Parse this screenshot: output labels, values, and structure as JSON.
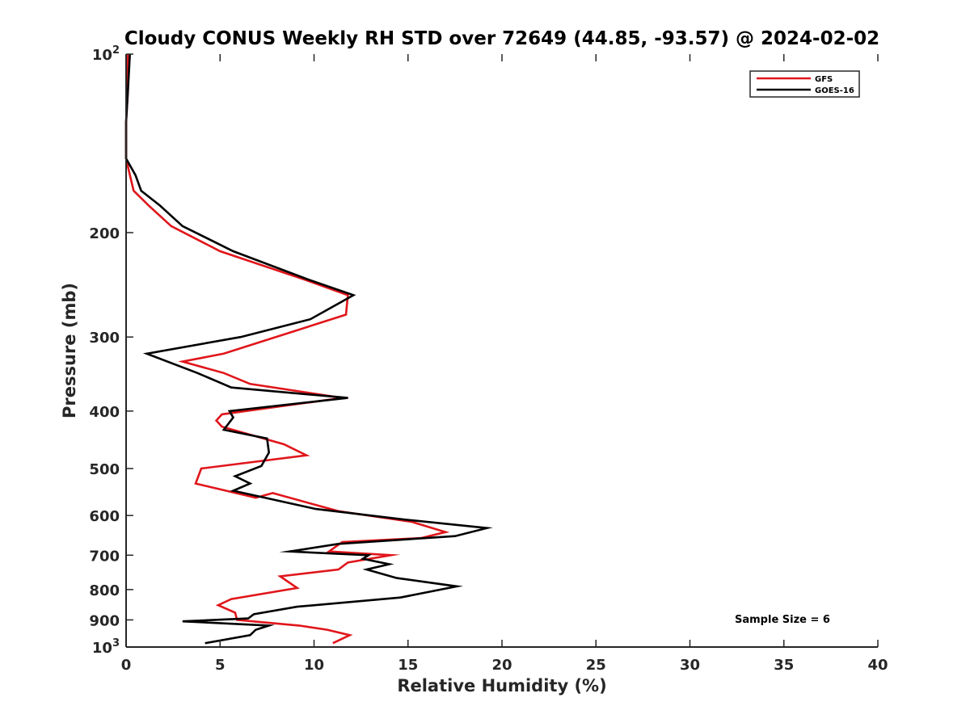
{
  "chart_data": {
    "type": "line",
    "title": "Cloudy CONUS Weekly RH STD over 72649 (44.85, -93.57) @ 2024-02-02",
    "xlabel": "Relative Humidity (%)",
    "ylabel": "Pressure (mb)",
    "xlim": [
      0,
      40
    ],
    "ylim": [
      100,
      1000
    ],
    "y_scale": "log",
    "y_reversed": true,
    "grid": false,
    "legend_position": "top-right",
    "x_ticks": [
      {
        "value": 0,
        "label": "0"
      },
      {
        "value": 5,
        "label": "5"
      },
      {
        "value": 10,
        "label": "10"
      },
      {
        "value": 15,
        "label": "15"
      },
      {
        "value": 20,
        "label": "20"
      },
      {
        "value": 25,
        "label": "25"
      },
      {
        "value": 30,
        "label": "30"
      },
      {
        "value": 35,
        "label": "35"
      },
      {
        "value": 40,
        "label": "40"
      }
    ],
    "y_ticks": [
      {
        "value": 100,
        "base": "10",
        "exp": "2"
      },
      {
        "value": 200,
        "base": "200",
        "exp": ""
      },
      {
        "value": 300,
        "base": "300",
        "exp": ""
      },
      {
        "value": 400,
        "base": "400",
        "exp": ""
      },
      {
        "value": 500,
        "base": "500",
        "exp": ""
      },
      {
        "value": 600,
        "base": "600",
        "exp": ""
      },
      {
        "value": 700,
        "base": "700",
        "exp": ""
      },
      {
        "value": 800,
        "base": "800",
        "exp": ""
      },
      {
        "value": 900,
        "base": "900",
        "exp": ""
      },
      {
        "value": 1000,
        "base": "10",
        "exp": "3"
      }
    ],
    "annotation": "Sample Size = 6",
    "series": [
      {
        "name": "GFS",
        "color": "#e0161b",
        "points": [
          [
            0.1,
            100
          ],
          [
            0.1,
            115
          ],
          [
            0.0,
            130
          ],
          [
            0.0,
            150
          ],
          [
            0.2,
            160
          ],
          [
            0.4,
            170
          ],
          [
            1.2,
            180
          ],
          [
            2.4,
            195
          ],
          [
            5.0,
            215
          ],
          [
            9.5,
            240
          ],
          [
            11.8,
            255
          ],
          [
            11.7,
            275
          ],
          [
            5.2,
            320
          ],
          [
            3.0,
            330
          ],
          [
            5.2,
            345
          ],
          [
            6.6,
            360
          ],
          [
            11.5,
            380
          ],
          [
            5.1,
            405
          ],
          [
            4.8,
            415
          ],
          [
            5.1,
            425
          ],
          [
            8.4,
            455
          ],
          [
            9.6,
            475
          ],
          [
            4.0,
            500
          ],
          [
            3.7,
            530
          ],
          [
            6.9,
            560
          ],
          [
            7.8,
            550
          ],
          [
            11.3,
            590
          ],
          [
            15.2,
            615
          ],
          [
            17.0,
            640
          ],
          [
            15.7,
            655
          ],
          [
            11.5,
            665
          ],
          [
            10.8,
            690
          ],
          [
            14.1,
            700
          ],
          [
            11.8,
            720
          ],
          [
            11.3,
            740
          ],
          [
            8.2,
            760
          ],
          [
            9.1,
            795
          ],
          [
            5.6,
            830
          ],
          [
            4.9,
            850
          ],
          [
            5.8,
            875
          ],
          [
            5.9,
            900
          ],
          [
            9.2,
            920
          ],
          [
            10.7,
            935
          ],
          [
            11.9,
            955
          ],
          [
            11.0,
            985
          ]
        ]
      },
      {
        "name": "GOES-16",
        "color": "#000000",
        "points": [
          [
            0.2,
            100
          ],
          [
            0.1,
            115
          ],
          [
            0.0,
            130
          ],
          [
            0.0,
            150
          ],
          [
            0.5,
            160
          ],
          [
            0.8,
            170
          ],
          [
            1.8,
            180
          ],
          [
            3.0,
            195
          ],
          [
            5.7,
            215
          ],
          [
            9.7,
            240
          ],
          [
            12.1,
            255
          ],
          [
            9.8,
            280
          ],
          [
            6.1,
            300
          ],
          [
            1.1,
            320
          ],
          [
            3.8,
            345
          ],
          [
            5.6,
            365
          ],
          [
            11.8,
            380
          ],
          [
            5.5,
            400
          ],
          [
            5.7,
            410
          ],
          [
            5.2,
            430
          ],
          [
            7.5,
            445
          ],
          [
            7.6,
            470
          ],
          [
            7.2,
            495
          ],
          [
            5.8,
            515
          ],
          [
            6.6,
            530
          ],
          [
            5.7,
            545
          ],
          [
            10.1,
            585
          ],
          [
            14.9,
            610
          ],
          [
            19.2,
            630
          ],
          [
            17.5,
            650
          ],
          [
            11.3,
            670
          ],
          [
            8.7,
            690
          ],
          [
            12.9,
            700
          ],
          [
            12.6,
            710
          ],
          [
            14.0,
            725
          ],
          [
            12.8,
            740
          ],
          [
            14.4,
            765
          ],
          [
            17.6,
            790
          ],
          [
            14.6,
            825
          ],
          [
            9.1,
            855
          ],
          [
            6.8,
            880
          ],
          [
            6.5,
            895
          ],
          [
            3.0,
            905
          ],
          [
            7.6,
            920
          ],
          [
            6.9,
            935
          ],
          [
            6.6,
            955
          ],
          [
            4.2,
            985
          ]
        ]
      }
    ]
  }
}
